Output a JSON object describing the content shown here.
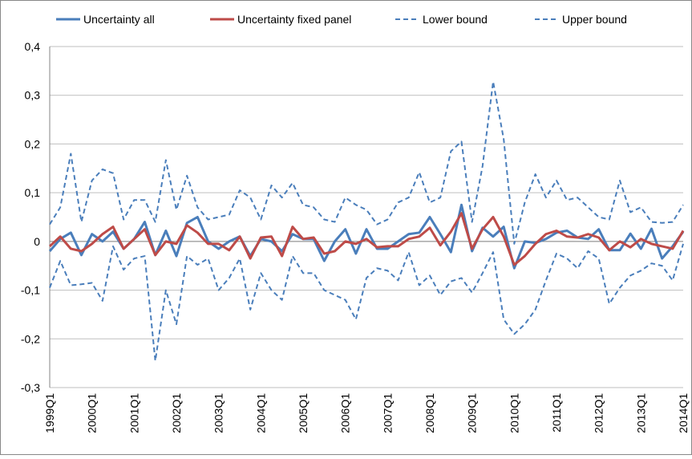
{
  "chart_data": {
    "type": "line",
    "categories": [
      "1999Q1",
      null,
      null,
      null,
      "2000Q1",
      null,
      null,
      null,
      "2001Q1",
      null,
      null,
      null,
      "2002Q1",
      null,
      null,
      null,
      "2003Q1",
      null,
      null,
      null,
      "2004Q1",
      null,
      null,
      null,
      "2005Q1",
      null,
      null,
      null,
      "2006Q1",
      null,
      null,
      null,
      "2007Q1",
      null,
      null,
      null,
      "2008Q1",
      null,
      null,
      null,
      "2009Q1",
      null,
      null,
      null,
      "2010Q1",
      null,
      null,
      null,
      "2011Q1",
      null,
      null,
      null,
      "2012Q1",
      null,
      null,
      null,
      "2013Q1",
      null,
      null,
      null,
      "2014Q1"
    ],
    "series": [
      {
        "name": "Uncertainty all",
        "color": "#4a7ebb",
        "dashed": false,
        "values": [
          -0.02,
          0.005,
          0.018,
          -0.028,
          0.015,
          0.0,
          0.02,
          -0.015,
          0.005,
          0.04,
          -0.028,
          0.022,
          -0.03,
          0.038,
          0.05,
          0.0,
          -0.015,
          0.0,
          0.01,
          -0.03,
          0.005,
          0.0,
          -0.02,
          0.015,
          0.005,
          0.005,
          -0.04,
          0.0,
          0.025,
          -0.025,
          0.025,
          -0.015,
          -0.015,
          0.0,
          0.015,
          0.018,
          0.05,
          0.015,
          -0.022,
          0.075,
          -0.02,
          0.028,
          0.01,
          0.03,
          -0.055,
          0.0,
          -0.003,
          0.005,
          0.018,
          0.022,
          0.008,
          0.005,
          0.025,
          -0.018,
          -0.018,
          0.016,
          -0.015,
          0.026,
          -0.035,
          -0.01,
          0.02
        ]
      },
      {
        "name": "Uncertainty fixed panel",
        "color": "#be4b48",
        "dashed": false,
        "values": [
          -0.01,
          0.01,
          -0.015,
          -0.02,
          -0.005,
          0.015,
          0.03,
          -0.015,
          0.005,
          0.025,
          -0.028,
          0.0,
          -0.005,
          0.033,
          0.018,
          -0.005,
          -0.005,
          -0.018,
          0.01,
          -0.035,
          0.008,
          0.01,
          -0.03,
          0.03,
          0.005,
          0.008,
          -0.025,
          -0.02,
          0.0,
          -0.005,
          0.005,
          -0.012,
          -0.01,
          -0.01,
          0.005,
          0.01,
          0.028,
          -0.008,
          0.02,
          0.058,
          -0.015,
          0.025,
          0.05,
          0.01,
          -0.048,
          -0.03,
          -0.005,
          0.015,
          0.022,
          0.01,
          0.008,
          0.015,
          0.008,
          -0.018,
          0.0,
          -0.012,
          0.005,
          -0.005,
          -0.01,
          -0.015,
          0.022
        ]
      },
      {
        "name": "Lower bound",
        "color": "#4a7ebb",
        "dashed": true,
        "values": [
          -0.095,
          -0.04,
          -0.09,
          -0.088,
          -0.085,
          -0.122,
          -0.01,
          -0.058,
          -0.035,
          -0.03,
          -0.245,
          -0.1,
          -0.17,
          -0.03,
          -0.048,
          -0.035,
          -0.1,
          -0.075,
          -0.035,
          -0.14,
          -0.065,
          -0.1,
          -0.12,
          -0.03,
          -0.065,
          -0.065,
          -0.1,
          -0.11,
          -0.12,
          -0.16,
          -0.075,
          -0.055,
          -0.06,
          -0.08,
          -0.022,
          -0.09,
          -0.07,
          -0.11,
          -0.082,
          -0.075,
          -0.105,
          -0.065,
          -0.022,
          -0.16,
          -0.19,
          -0.17,
          -0.14,
          -0.08,
          -0.025,
          -0.035,
          -0.055,
          -0.02,
          -0.035,
          -0.128,
          -0.095,
          -0.07,
          -0.06,
          -0.045,
          -0.05,
          -0.08,
          -0.005
        ]
      },
      {
        "name": "Upper bound",
        "color": "#4a7ebb",
        "dashed": true,
        "values": [
          0.035,
          0.07,
          0.18,
          0.04,
          0.125,
          0.148,
          0.14,
          0.045,
          0.085,
          0.085,
          0.04,
          0.167,
          0.065,
          0.135,
          0.07,
          0.045,
          0.05,
          0.055,
          0.105,
          0.09,
          0.045,
          0.115,
          0.09,
          0.12,
          0.075,
          0.07,
          0.045,
          0.04,
          0.09,
          0.075,
          0.065,
          0.035,
          0.045,
          0.08,
          0.09,
          0.142,
          0.08,
          0.09,
          0.185,
          0.205,
          0.04,
          0.155,
          0.328,
          0.21,
          -0.005,
          0.08,
          0.138,
          0.09,
          0.125,
          0.085,
          0.09,
          0.07,
          0.05,
          0.045,
          0.125,
          0.06,
          0.07,
          0.04,
          0.038,
          0.04,
          0.075
        ]
      }
    ],
    "ylim": [
      -0.3,
      0.4
    ],
    "yticks": [
      {
        "value": -0.3,
        "label": "-0,3"
      },
      {
        "value": -0.2,
        "label": "-0,2"
      },
      {
        "value": -0.1,
        "label": "-0,1"
      },
      0,
      {
        "value": 0.1,
        "label": "0,1"
      },
      {
        "value": 0.2,
        "label": "0,2"
      },
      {
        "value": 0.3,
        "label": "0,3"
      },
      {
        "value": 0.4,
        "label": "0,4"
      }
    ],
    "grid": true,
    "legend": "top"
  }
}
